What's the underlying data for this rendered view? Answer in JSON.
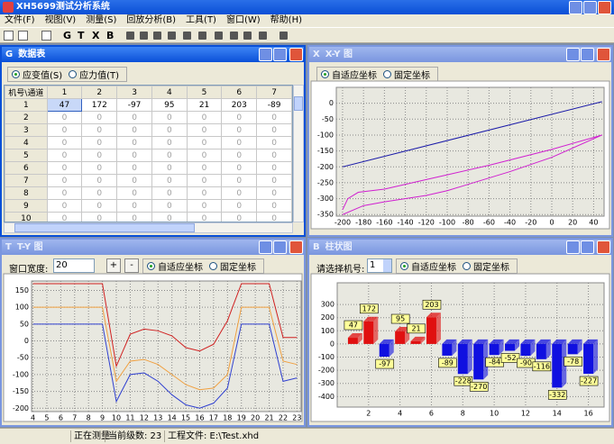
{
  "title": "XH5699测试分析系统",
  "menu": [
    "文件(F)",
    "视图(V)",
    "测量(S)",
    "回放分析(B)",
    "工具(T)",
    "窗口(W)",
    "帮助(H)"
  ],
  "toolbar": [
    "G",
    "T",
    "X",
    "B"
  ],
  "data_window": {
    "icon": "G",
    "title": "数据表",
    "radios": [
      "应变值(S)",
      "应力值(T)"
    ],
    "columns": [
      "机号\\通道",
      "1",
      "2",
      "3",
      "4",
      "5",
      "6",
      "7"
    ],
    "row_labels": [
      1,
      2,
      3,
      4,
      5,
      6,
      7,
      8,
      9,
      10
    ],
    "rows": [
      [
        47,
        172,
        -97,
        95,
        21,
        203,
        -89
      ],
      [
        0,
        0,
        0,
        0,
        0,
        0,
        0
      ],
      [
        0,
        0,
        0,
        0,
        0,
        0,
        0
      ],
      [
        0,
        0,
        0,
        0,
        0,
        0,
        0
      ],
      [
        0,
        0,
        0,
        0,
        0,
        0,
        0
      ],
      [
        0,
        0,
        0,
        0,
        0,
        0,
        0
      ],
      [
        0,
        0,
        0,
        0,
        0,
        0,
        0
      ],
      [
        0,
        0,
        0,
        0,
        0,
        0,
        0
      ],
      [
        0,
        0,
        0,
        0,
        0,
        0,
        0
      ],
      [
        0,
        0,
        0,
        0,
        0,
        0,
        0
      ]
    ]
  },
  "xy_window": {
    "icon": "X",
    "title": "X-Y 图",
    "radios": [
      "自适应坐标",
      "固定坐标"
    ],
    "chart": {
      "type": "line",
      "xlim": [
        -206,
        50
      ],
      "ylim": [
        -355,
        50
      ],
      "xticks": [
        -200,
        -180,
        -160,
        -140,
        -120,
        -100,
        -80,
        -60,
        -40,
        -20,
        0,
        20,
        40
      ],
      "yticks": [
        0,
        -50,
        -100,
        -150,
        -200,
        -250,
        -300,
        -350
      ],
      "grid": true,
      "series": [
        {
          "color": "#1a1aa8",
          "x": [
            -200,
            48
          ],
          "values": [
            -200,
            5
          ]
        },
        {
          "color": "#d020d0",
          "x": [
            -200,
            -180,
            -160,
            -120,
            -100,
            -80,
            -40,
            0,
            48,
            0,
            -60,
            -100,
            -120,
            -160,
            -185,
            -195,
            -200
          ],
          "values": [
            -350,
            -322,
            -310,
            -290,
            -275,
            -255,
            -215,
            -170,
            -100,
            -145,
            -195,
            -225,
            -240,
            -270,
            -280,
            -300,
            -335
          ]
        }
      ]
    }
  },
  "ty_window": {
    "icon": "T",
    "title": "T-Y 图",
    "width_label": "窗口宽度:",
    "width_value": "20",
    "buttons": [
      "+",
      "-"
    ],
    "radios": [
      "自适应坐标",
      "固定坐标"
    ],
    "chart": {
      "type": "line",
      "xlim": [
        3.9,
        23.3
      ],
      "ylim": [
        -210,
        178
      ],
      "xticks": [
        4,
        5,
        6,
        7,
        8,
        9,
        10,
        11,
        12,
        13,
        14,
        15,
        16,
        17,
        18,
        19,
        20,
        21,
        22,
        23
      ],
      "yticks": [
        150,
        100,
        50,
        0,
        -50,
        -100,
        -150,
        -200
      ],
      "grid": true,
      "x": [
        4,
        5,
        6,
        7,
        8,
        9,
        10,
        11,
        12,
        13,
        14,
        15,
        16,
        17,
        18,
        19,
        20,
        21,
        22,
        23
      ],
      "series": [
        {
          "color": "#d02020",
          "values": [
            170,
            170,
            170,
            170,
            170,
            170,
            -75,
            20,
            35,
            30,
            15,
            -20,
            -30,
            -10,
            60,
            170,
            170,
            170,
            10,
            10
          ]
        },
        {
          "color": "#f0a040",
          "values": [
            100,
            100,
            100,
            100,
            100,
            100,
            -120,
            -60,
            -55,
            -70,
            -100,
            -130,
            -145,
            -140,
            -100,
            100,
            100,
            100,
            -60,
            -70
          ]
        },
        {
          "color": "#3040d0",
          "values": [
            50,
            50,
            50,
            50,
            50,
            50,
            -180,
            -100,
            -95,
            -120,
            -160,
            -190,
            -200,
            -185,
            -140,
            50,
            50,
            50,
            -120,
            -110
          ]
        }
      ]
    }
  },
  "bar_window": {
    "icon": "B",
    "title": "柱状图",
    "select_label": "请选择机号:",
    "select_value": "1",
    "radios": [
      "自适应坐标",
      "固定坐标"
    ],
    "chart": {
      "type": "bar3d",
      "xlim": [
        0,
        17
      ],
      "ylim": [
        -480,
        465
      ],
      "xticks": [
        2,
        4,
        6,
        8,
        10,
        12,
        14,
        16
      ],
      "yticks": [
        300,
        200,
        100,
        0,
        -100,
        -200,
        -300,
        -400
      ],
      "grid": true,
      "positive_color": "#e01010",
      "negative_color": "#1010e0",
      "x": [
        1,
        2,
        3,
        4,
        5,
        6,
        7,
        8,
        9,
        10,
        11,
        12,
        13,
        14,
        15,
        16
      ],
      "values": [
        47,
        172,
        -97,
        95,
        21,
        203,
        -89,
        -228,
        -270,
        -84,
        -52,
        -90,
        -116,
        -332,
        -78,
        -227
      ]
    }
  },
  "status": [
    "正在测量",
    "当前级数: 23",
    "工程文件: E:\\Test.xhd"
  ]
}
